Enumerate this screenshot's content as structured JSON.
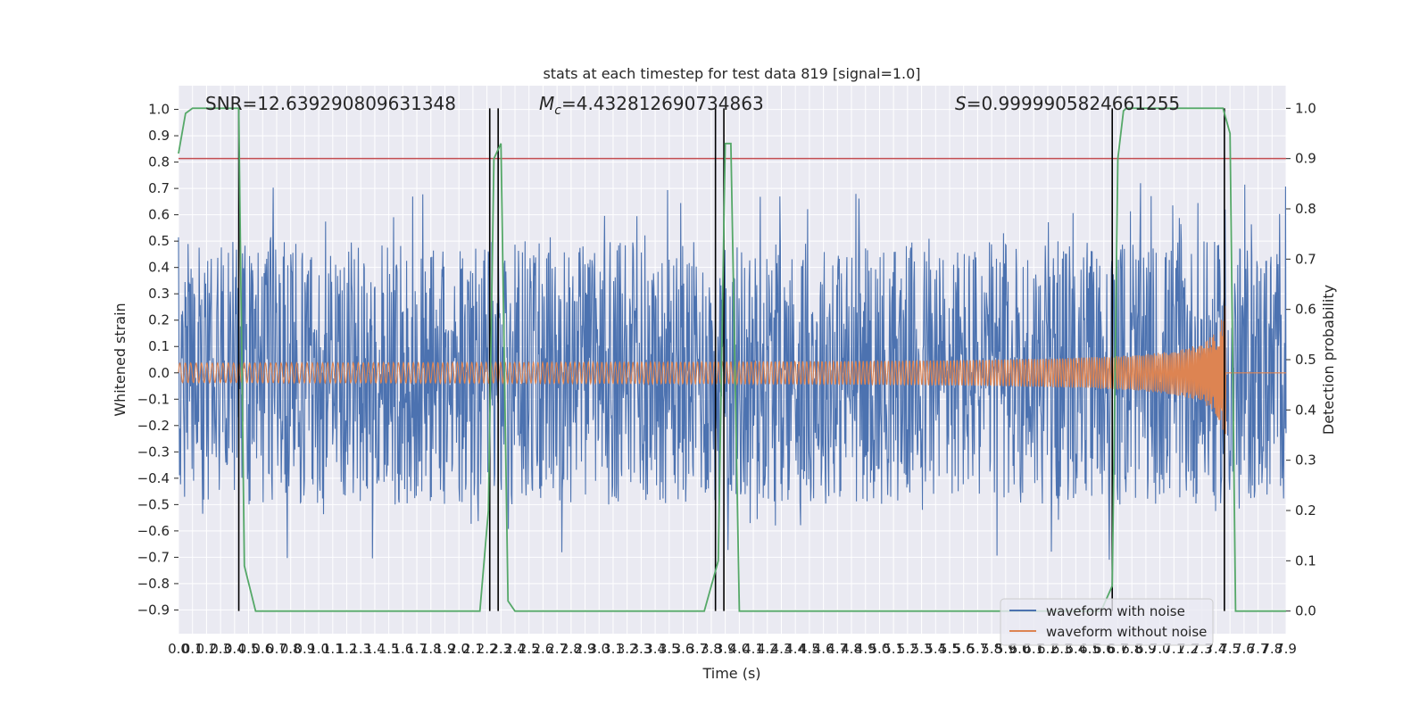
{
  "chart_data": {
    "type": "line",
    "title": "stats at each timestep for test data 819 [signal=1.0]",
    "xlabel": "Time (s)",
    "ylabel_left": "Whitened strain",
    "ylabel_right": "Detection probability",
    "xlim": [
      0.0,
      7.9
    ],
    "ylim_left": [
      -0.99,
      1.09
    ],
    "ylim_right": [
      -0.045,
      1.045
    ],
    "x_ticks": [
      "0.0",
      "0.1",
      "0.2",
      "0.3",
      "0.4",
      "0.5",
      "0.6",
      "0.7",
      "0.8",
      "0.9",
      "1.0",
      "1.1",
      "1.2",
      "1.3",
      "1.4",
      "1.5",
      "1.6",
      "1.7",
      "1.8",
      "1.9",
      "2.0",
      "2.1",
      "2.2",
      "2.3",
      "2.4",
      "2.5",
      "2.6",
      "2.7",
      "2.8",
      "2.9",
      "3.0",
      "3.1",
      "3.2",
      "3.3",
      "3.4",
      "3.5",
      "3.6",
      "3.7",
      "3.8",
      "3.9",
      "4.0",
      "4.1",
      "4.2",
      "4.3",
      "4.4",
      "4.5",
      "4.6",
      "4.7",
      "4.8",
      "4.9",
      "5.0",
      "5.1",
      "5.2",
      "5.3",
      "5.4",
      "5.5",
      "5.6",
      "5.7",
      "5.8",
      "5.9",
      "6.0",
      "6.1",
      "6.2",
      "6.3",
      "6.4",
      "6.5",
      "6.6",
      "6.7",
      "6.8",
      "6.9",
      "7.0",
      "7.1",
      "7.2",
      "7.3",
      "7.4",
      "7.5",
      "7.6",
      "7.7",
      "7.8",
      "7.9"
    ],
    "y_ticks_left": [
      "−0.9",
      "−0.8",
      "−0.7",
      "−0.6",
      "−0.5",
      "−0.4",
      "−0.3",
      "−0.2",
      "−0.1",
      "0.0",
      "0.1",
      "0.2",
      "0.3",
      "0.4",
      "0.5",
      "0.6",
      "0.7",
      "0.8",
      "0.9",
      "1.0"
    ],
    "y_ticks_right": [
      "0.0",
      "0.1",
      "0.2",
      "0.3",
      "0.4",
      "0.5",
      "0.6",
      "0.7",
      "0.8",
      "0.9",
      "1.0"
    ],
    "annotations": {
      "snr": "SNR=12.639290809631348",
      "mc_symbol": "M",
      "mc_sub": "c",
      "mc_value": "=4.432812690734863",
      "s_symbol": "S",
      "s_value": "=0.9999905824661255"
    },
    "legend": {
      "placement": "lower-right",
      "entries": [
        "waveform with noise",
        "waveform without noise"
      ]
    },
    "threshold": {
      "probability": 0.9,
      "color": "#c44e52"
    },
    "detection_probability": {
      "color": "#55a868",
      "x": [
        0.0,
        0.05,
        0.1,
        0.43,
        0.47,
        0.55,
        2.15,
        2.21,
        2.25,
        2.3,
        2.35,
        2.4,
        3.75,
        3.85,
        3.9,
        3.94,
        4.0,
        6.58,
        6.66,
        6.7,
        6.74,
        6.76,
        7.45,
        7.5,
        7.54,
        7.9
      ],
      "y": [
        0.91,
        0.99,
        1.0,
        1.0,
        0.09,
        0.0,
        0.0,
        0.2,
        0.9,
        0.93,
        0.02,
        0.0,
        0.0,
        0.1,
        0.93,
        0.93,
        0.0,
        0.0,
        0.05,
        0.9,
        0.995,
        1.0,
        1.0,
        0.95,
        0.0,
        0.0
      ]
    },
    "event_lines_x": [
      0.43,
      2.22,
      2.28,
      3.83,
      3.89,
      6.66,
      7.46
    ],
    "series": [
      {
        "name": "waveform with noise",
        "color": "#4c72b0",
        "envelope": 0.5,
        "peak_max": 1.0,
        "peak_min": -0.93
      },
      {
        "name": "waveform without noise",
        "color": "#dd8452",
        "amplitude_start": 0.03,
        "amplitude_end": 0.27,
        "merger_time": 7.47
      }
    ],
    "grid": true,
    "background": "#eaeaf2"
  }
}
